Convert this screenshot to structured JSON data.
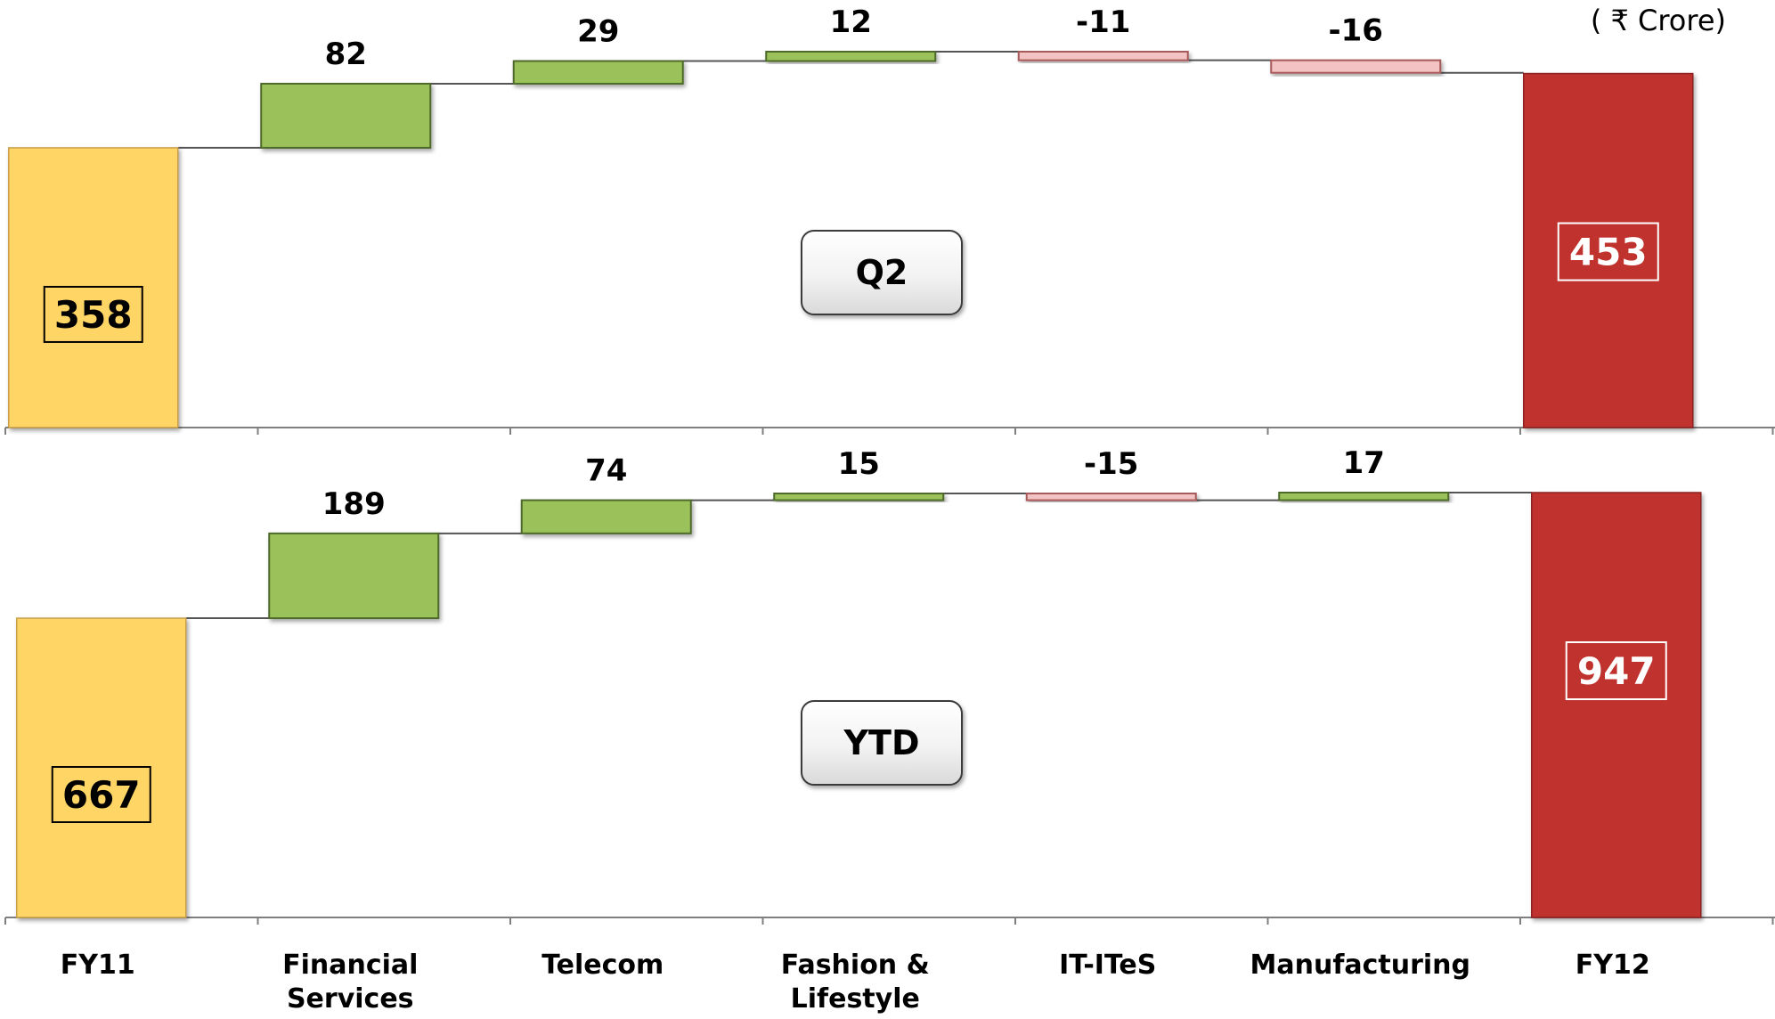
{
  "unit_label": "( ₹ Crore)",
  "colors": {
    "start": "#FFD566",
    "start_stroke": "#C9A04A",
    "end": "#C0302D",
    "end_stroke": "#8E2220",
    "positive": "#9BC25A",
    "positive_stroke": "#4E6B2A",
    "negative": "#F3C2C2",
    "negative_stroke": "#A85A5A",
    "connector": "#555555",
    "axis": "#7F7F7F"
  },
  "chart_data": [
    {
      "type": "waterfall",
      "panel_label": "Q2",
      "categories": [
        "FY11",
        "Financial Services",
        "Telecom",
        "Fashion & Lifestyle",
        "IT-ITeS",
        "Manufacturing",
        "FY12"
      ],
      "start": {
        "category": "FY11",
        "value": 358,
        "label": "358"
      },
      "deltas": [
        {
          "category": "Financial Services",
          "value": 82,
          "label": "82"
        },
        {
          "category": "Telecom",
          "value": 29,
          "label": "29"
        },
        {
          "category": "Fashion & Lifestyle",
          "value": 12,
          "label": "12"
        },
        {
          "category": "IT-ITeS",
          "value": -11,
          "label": "-11"
        },
        {
          "category": "Manufacturing",
          "value": -16,
          "label": "-16"
        }
      ],
      "end": {
        "category": "FY12",
        "value": 453,
        "label": "453"
      }
    },
    {
      "type": "waterfall",
      "panel_label": "YTD",
      "categories": [
        "FY11",
        "Financial Services",
        "Telecom",
        "Fashion & Lifestyle",
        "IT-ITeS",
        "Manufacturing",
        "FY12"
      ],
      "start": {
        "category": "FY11",
        "value": 667,
        "label": "667"
      },
      "deltas": [
        {
          "category": "Financial Services",
          "value": 189,
          "label": "189"
        },
        {
          "category": "Telecom",
          "value": 74,
          "label": "74"
        },
        {
          "category": "Fashion & Lifestyle",
          "value": 15,
          "label": "15"
        },
        {
          "category": "IT-ITeS",
          "value": -15,
          "label": "-15"
        },
        {
          "category": "Manufacturing",
          "value": 17,
          "label": "17"
        }
      ],
      "end": {
        "category": "FY12",
        "value": 947,
        "label": "947"
      }
    }
  ],
  "x_axis_labels": [
    [
      "FY11"
    ],
    [
      "Financial",
      "Services"
    ],
    [
      "Telecom"
    ],
    [
      "Fashion &",
      "Lifestyle"
    ],
    [
      "IT-ITeS"
    ],
    [
      "Manufacturing"
    ],
    [
      "FY12"
    ]
  ]
}
